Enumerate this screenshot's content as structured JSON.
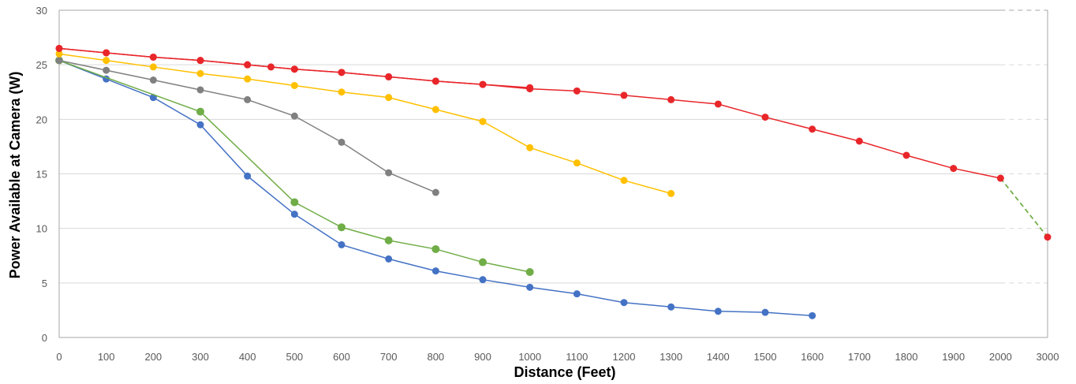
{
  "chart_data": {
    "type": "line",
    "title": "",
    "xlabel": "Distance (Feet)",
    "ylabel": "Power Available at Camera (W)",
    "x_ticks": [
      "0",
      "100",
      "200",
      "300",
      "400",
      "500",
      "600",
      "700",
      "800",
      "900",
      "1000",
      "1100",
      "1200",
      "1300",
      "1400",
      "1500",
      "1600",
      "1700",
      "1800",
      "1900",
      "2000",
      "3000"
    ],
    "y_ticks": [
      "0",
      "5",
      "10",
      "15",
      "20",
      "25",
      "30"
    ],
    "ylim": [
      0,
      30
    ],
    "grid": true,
    "legend": "none",
    "notes": "x axis is categorical: 0-2000 in steps of 100, then a single 3000 category; the final 2000-3000 segment is dashed",
    "series": [
      {
        "color": "#4472C4",
        "x": [
          "0",
          "100",
          "200",
          "300",
          "400",
          "500",
          "600",
          "700",
          "800",
          "900",
          "1000",
          "1100",
          "1200",
          "1300",
          "1400",
          "1500",
          "1600"
        ],
        "values": [
          25.4,
          23.7,
          22.0,
          19.5,
          14.8,
          11.3,
          8.5,
          7.2,
          6.1,
          5.3,
          4.6,
          4.0,
          3.2,
          2.8,
          2.4,
          2.3,
          2.0
        ]
      },
      {
        "color": "#70AD47",
        "x": [
          "0",
          "300",
          "500",
          "600",
          "700",
          "800",
          "900",
          "1000"
        ],
        "values": [
          25.4,
          20.7,
          12.4,
          10.1,
          8.9,
          8.1,
          6.9,
          6.0
        ]
      },
      {
        "color": "#808080",
        "x": [
          "0",
          "100",
          "200",
          "300",
          "400",
          "500",
          "600",
          "700",
          "800"
        ],
        "values": [
          25.4,
          24.5,
          23.6,
          22.7,
          21.8,
          20.3,
          17.9,
          15.1,
          13.3
        ]
      },
      {
        "color": "#FFC000",
        "x": [
          "0",
          "100",
          "200",
          "300",
          "400",
          "500",
          "600",
          "700",
          "800",
          "900",
          "1000",
          "1100",
          "1200",
          "1300"
        ],
        "values": [
          26.0,
          25.4,
          24.8,
          24.2,
          23.7,
          23.1,
          22.5,
          22.0,
          20.9,
          19.8,
          17.4,
          16.0,
          14.4,
          13.2
        ]
      },
      {
        "color": "#E8262A",
        "x": [
          "0",
          "100",
          "200",
          "300",
          "400",
          "450",
          "500",
          "600",
          "700",
          "800",
          "900",
          "1000"
        ],
        "values": [
          26.5,
          26.1,
          25.7,
          25.4,
          25.0,
          24.8,
          24.6,
          24.3,
          23.9,
          23.5,
          23.2,
          22.9
        ]
      },
      {
        "color": "#E8262A",
        "x": [
          "0",
          "100",
          "200",
          "300",
          "400",
          "500",
          "600",
          "700",
          "800",
          "900",
          "1000",
          "1100",
          "1200",
          "1300",
          "1400",
          "1500",
          "1600",
          "1700",
          "1800",
          "1900",
          "2000",
          "3000"
        ],
        "values": [
          26.5,
          26.1,
          25.7,
          25.4,
          25.0,
          24.6,
          24.3,
          23.9,
          23.5,
          23.2,
          22.8,
          22.6,
          22.2,
          21.8,
          21.4,
          20.2,
          19.1,
          18.0,
          16.7,
          15.5,
          14.6,
          9.2
        ],
        "dashed_last_segment_color": "#70AD47"
      }
    ]
  }
}
